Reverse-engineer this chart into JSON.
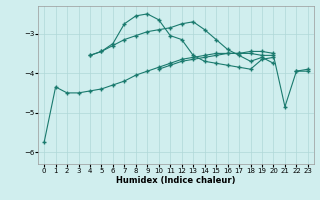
{
  "xlabel": "Humidex (Indice chaleur)",
  "background_color": "#d0eeee",
  "line_color": "#1a7a6e",
  "x": [
    0,
    1,
    2,
    3,
    4,
    5,
    6,
    7,
    8,
    9,
    10,
    11,
    12,
    13,
    14,
    15,
    16,
    17,
    18,
    19,
    20,
    21,
    22,
    23
  ],
  "line1": [
    null,
    null,
    null,
    null,
    -3.55,
    -3.45,
    -3.25,
    -2.75,
    -2.55,
    -2.5,
    -2.65,
    -3.05,
    -3.15,
    -3.55,
    -3.7,
    -3.75,
    -3.8,
    -3.85,
    -3.9,
    -3.65,
    -3.6,
    null,
    -3.95,
    -3.95
  ],
  "line2": [
    null,
    null,
    null,
    null,
    -3.55,
    -3.45,
    -3.3,
    -3.15,
    -3.05,
    -2.95,
    -2.9,
    -2.85,
    -2.75,
    -2.7,
    -2.9,
    -3.15,
    -3.4,
    -3.55,
    -3.7,
    -3.6,
    -3.75,
    null,
    null,
    null
  ],
  "line3": [
    -5.75,
    -4.35,
    -4.5,
    -4.5,
    -4.45,
    -4.4,
    -4.3,
    -4.2,
    -4.05,
    -3.95,
    -3.85,
    -3.75,
    -3.65,
    -3.6,
    -3.55,
    -3.5,
    -3.5,
    -3.5,
    -3.5,
    -3.55,
    -3.55,
    -4.85,
    -3.95,
    -3.9
  ],
  "line4": [
    null,
    null,
    null,
    null,
    null,
    null,
    null,
    null,
    null,
    null,
    -3.9,
    -3.8,
    -3.7,
    -3.65,
    -3.6,
    -3.55,
    -3.5,
    -3.5,
    -3.45,
    -3.45,
    -3.5,
    null,
    null,
    null
  ],
  "ylim": [
    -6.3,
    -2.3
  ],
  "xlim": [
    -0.5,
    23.5
  ],
  "yticks": [
    -6,
    -5,
    -4,
    -3
  ],
  "xticks": [
    0,
    1,
    2,
    3,
    4,
    5,
    6,
    7,
    8,
    9,
    10,
    11,
    12,
    13,
    14,
    15,
    16,
    17,
    18,
    19,
    20,
    21,
    22,
    23
  ],
  "grid_color": "#b0d8d8",
  "marker": "+",
  "markersize": 3,
  "linewidth": 0.8,
  "tick_fontsize": 5.0,
  "xlabel_fontsize": 6.0
}
